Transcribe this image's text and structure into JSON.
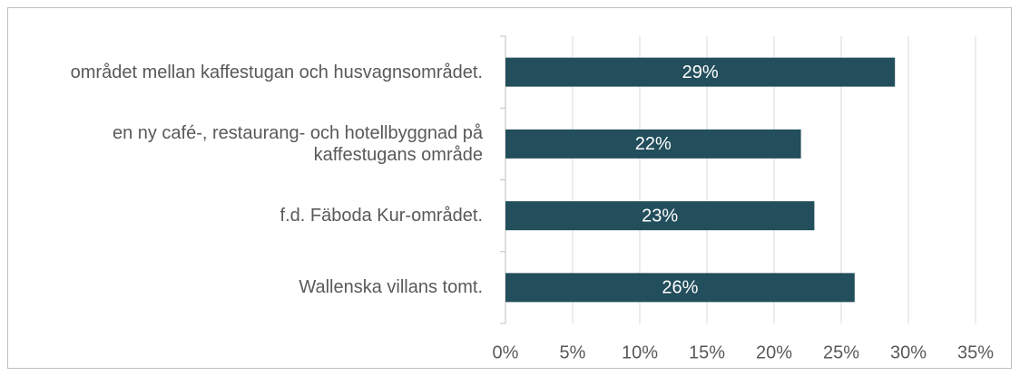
{
  "chart_data": {
    "type": "bar",
    "orientation": "horizontal",
    "categories": [
      "området mellan kaffestugan och husvagnsområdet.",
      "en ny café-, restaurang- och hotellbyggnad på kaffestugans område",
      "f.d. Fäboda Kur-området.",
      "Wallenska villans tomt."
    ],
    "values": [
      29,
      22,
      23,
      26
    ],
    "value_labels": [
      "29%",
      "22%",
      "23%",
      "26%"
    ],
    "color": "#234e5c",
    "xlim": [
      0,
      35
    ],
    "xticks": [
      {
        "value": 0,
        "label": "0%"
      },
      {
        "value": 5,
        "label": "5%"
      },
      {
        "value": 10,
        "label": "10%"
      },
      {
        "value": 15,
        "label": "15%"
      },
      {
        "value": 20,
        "label": "20%"
      },
      {
        "value": 25,
        "label": "25%"
      },
      {
        "value": 30,
        "label": "30%"
      },
      {
        "value": 35,
        "label": "35%"
      }
    ],
    "grid": true
  }
}
